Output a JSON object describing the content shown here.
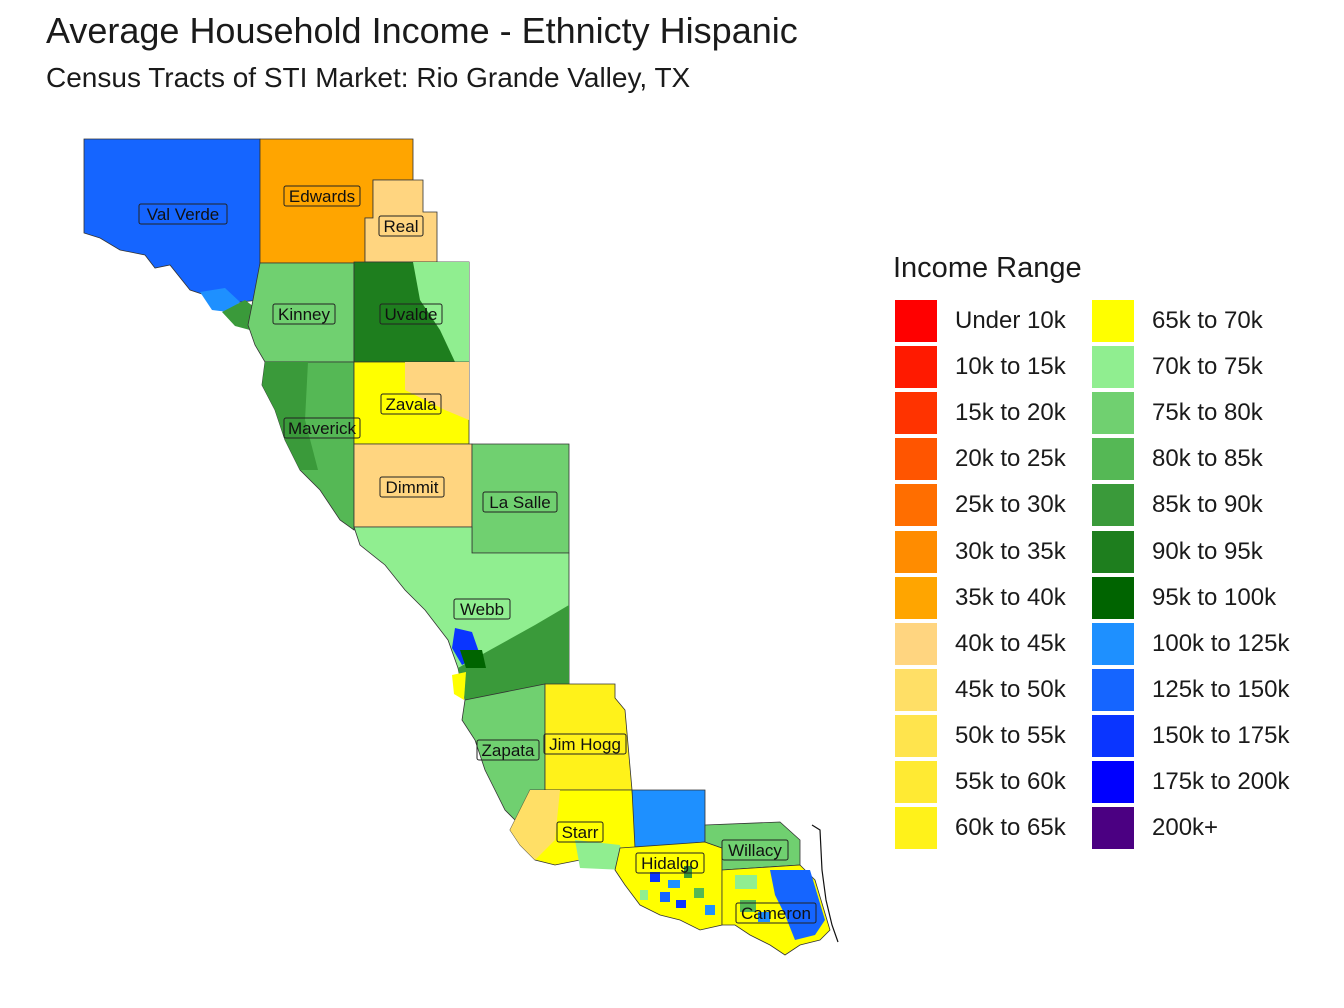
{
  "title": "Average Household Income - Ethnicty Hispanic",
  "subtitle": "Census Tracts of STI Market: Rio Grande Valley, TX",
  "legend": {
    "title": "Income Range",
    "items": [
      {
        "label": "Under 10k",
        "color": "#ff0000"
      },
      {
        "label": "10k to 15k",
        "color": "#ff1a00"
      },
      {
        "label": "15k to 20k",
        "color": "#ff3300"
      },
      {
        "label": "20k to 25k",
        "color": "#ff5500"
      },
      {
        "label": "25k to 30k",
        "color": "#ff6e00"
      },
      {
        "label": "30k to 35k",
        "color": "#ff8c00"
      },
      {
        "label": "35k to 40k",
        "color": "#ffa500"
      },
      {
        "label": "40k to 45k",
        "color": "#ffd580"
      },
      {
        "label": "45k to 50k",
        "color": "#ffdf66"
      },
      {
        "label": "50k to 55k",
        "color": "#ffe44d"
      },
      {
        "label": "55k to 60k",
        "color": "#ffea33"
      },
      {
        "label": "60k to 65k",
        "color": "#fff21a"
      },
      {
        "label": "65k to 70k",
        "color": "#ffff00"
      },
      {
        "label": "70k to 75k",
        "color": "#90ee90"
      },
      {
        "label": "75k to 80k",
        "color": "#70d070"
      },
      {
        "label": "80k to 85k",
        "color": "#55b855"
      },
      {
        "label": "85k to 90k",
        "color": "#3a9a3a"
      },
      {
        "label": "90k to 95k",
        "color": "#1e7e1e"
      },
      {
        "label": "95k to 100k",
        "color": "#006400"
      },
      {
        "label": "100k to 125k",
        "color": "#1e90ff"
      },
      {
        "label": "125k to 150k",
        "color": "#1565ff"
      },
      {
        "label": "150k to 175k",
        "color": "#0a35ff"
      },
      {
        "label": "175k to 200k",
        "color": "#0000ff"
      },
      {
        "label": "200k+",
        "color": "#4b0082"
      }
    ]
  },
  "counties": [
    {
      "name": "Val Verde",
      "range": "125k to 150k"
    },
    {
      "name": "Edwards",
      "range": "35k to 40k"
    },
    {
      "name": "Real",
      "range": "40k to 45k"
    },
    {
      "name": "Kinney",
      "range": "75k to 80k"
    },
    {
      "name": "Uvalde",
      "range": "90k to 95k"
    },
    {
      "name": "Zavala",
      "range": "65k to 70k"
    },
    {
      "name": "Maverick",
      "range": "80k to 85k"
    },
    {
      "name": "Dimmit",
      "range": "40k to 45k"
    },
    {
      "name": "La Salle",
      "range": "75k to 80k"
    },
    {
      "name": "Webb",
      "range": "70k to 75k"
    },
    {
      "name": "Zapata",
      "range": "75k to 80k"
    },
    {
      "name": "Jim Hogg",
      "range": "60k to 65k"
    },
    {
      "name": "Starr",
      "range": "70k to 75k"
    },
    {
      "name": "Hidalgo",
      "range": "60k to 65k"
    },
    {
      "name": "Willacy",
      "range": "75k to 80k"
    },
    {
      "name": "Cameron",
      "range": "125k to 150k"
    }
  ]
}
